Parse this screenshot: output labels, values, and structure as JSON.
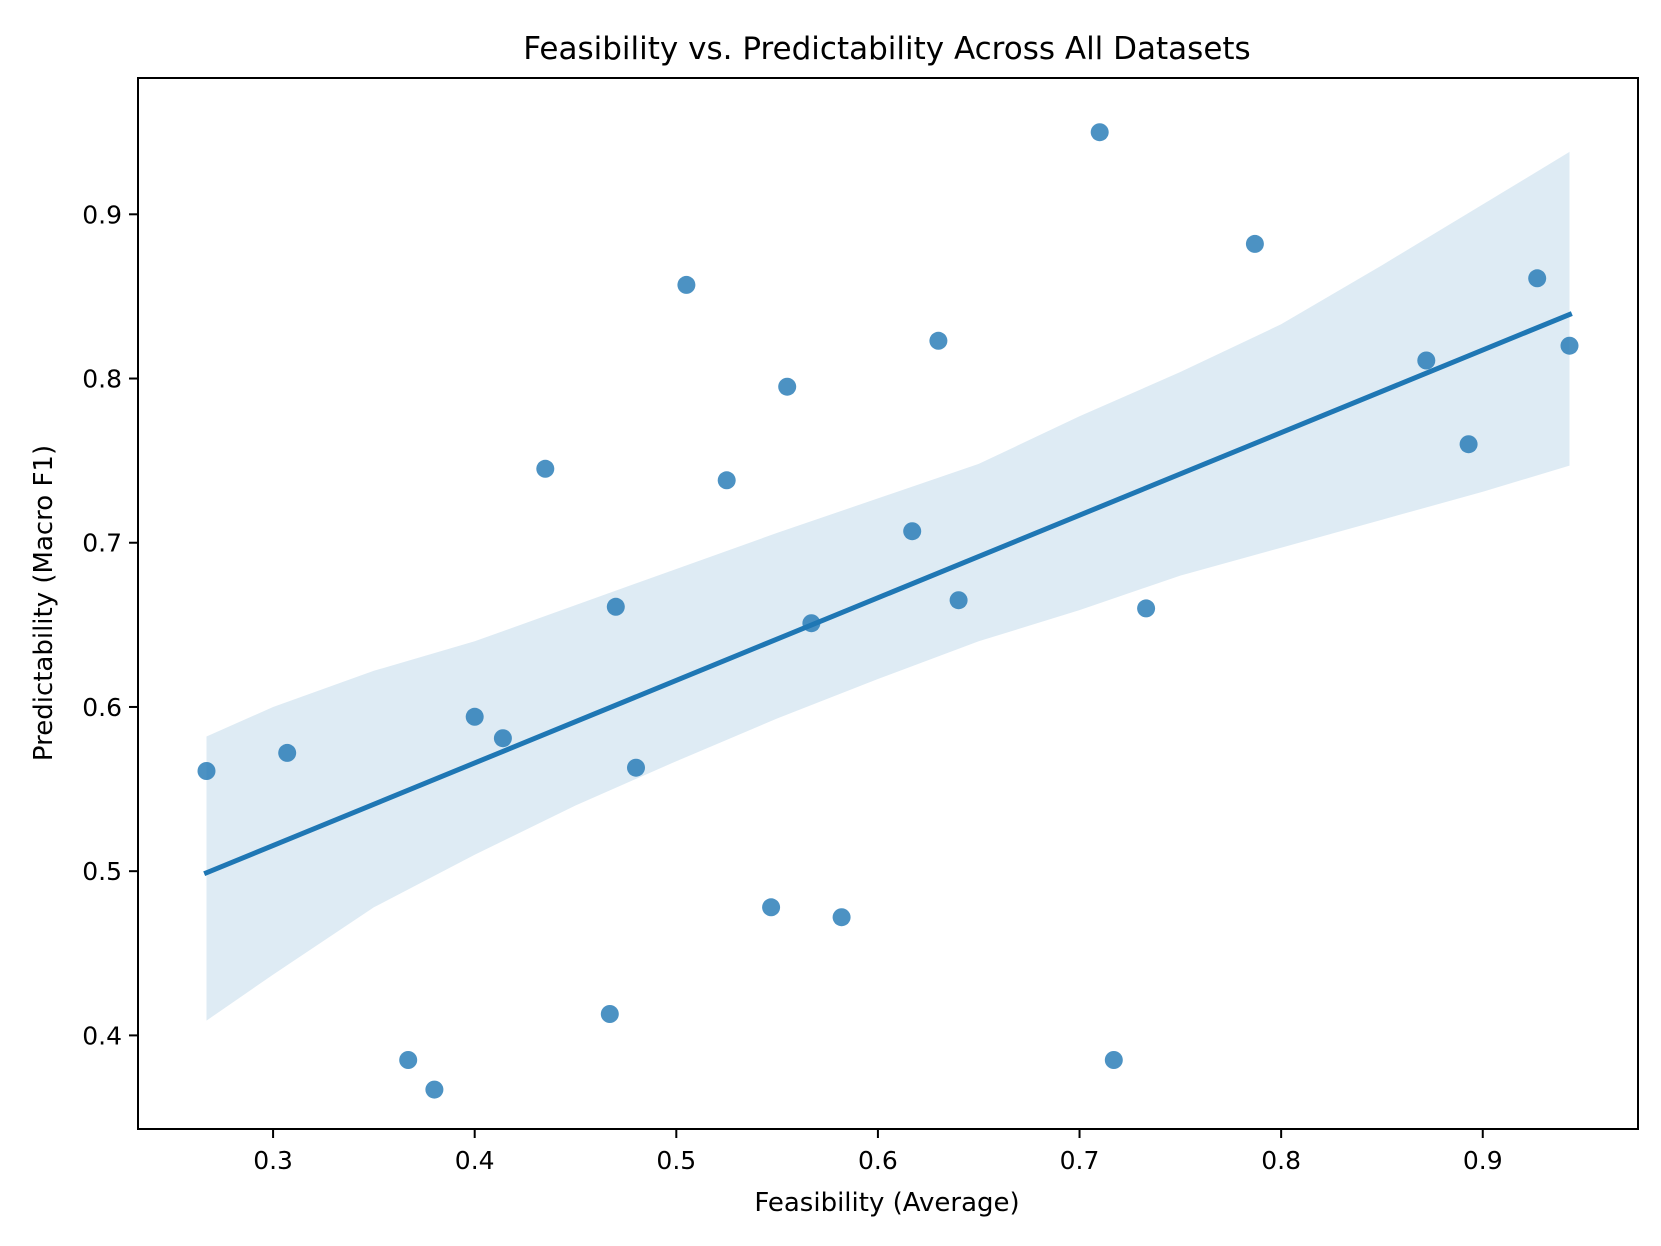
{
  "chart_data": {
    "type": "scatter",
    "title": "Feasibility vs. Predictability Across All Datasets",
    "xlabel": "Feasibility (Average)",
    "ylabel": "Predictability (Macro F1)",
    "xlim": [
      0.233,
      0.977
    ],
    "ylim": [
      0.343,
      0.983
    ],
    "xticks": [
      0.3,
      0.4,
      0.5,
      0.6,
      0.7,
      0.8,
      0.9
    ],
    "xtick_labels": [
      "0.3",
      "0.4",
      "0.5",
      "0.6",
      "0.7",
      "0.8",
      "0.9"
    ],
    "yticks": [
      0.4,
      0.5,
      0.6,
      0.7,
      0.8,
      0.9
    ],
    "ytick_labels": [
      "0.4",
      "0.5",
      "0.6",
      "0.7",
      "0.8",
      "0.9"
    ],
    "grid": false,
    "series": [
      {
        "name": "datasets",
        "color": "#1f77b4",
        "x": [
          0.267,
          0.307,
          0.367,
          0.38,
          0.4,
          0.414,
          0.435,
          0.467,
          0.47,
          0.48,
          0.505,
          0.525,
          0.547,
          0.555,
          0.567,
          0.582,
          0.617,
          0.63,
          0.64,
          0.71,
          0.717,
          0.733,
          0.787,
          0.872,
          0.893,
          0.927,
          0.943
        ],
        "y": [
          0.561,
          0.572,
          0.385,
          0.367,
          0.594,
          0.581,
          0.745,
          0.413,
          0.661,
          0.563,
          0.857,
          0.738,
          0.478,
          0.795,
          0.651,
          0.472,
          0.707,
          0.823,
          0.665,
          0.95,
          0.385,
          0.66,
          0.882,
          0.811,
          0.76,
          0.861,
          0.82
        ]
      }
    ],
    "regression": {
      "color": "#1f77b4",
      "x_range": [
        0.267,
        0.943
      ],
      "line_y": [
        0.499,
        0.839
      ],
      "ci": {
        "color": "#1f77b4",
        "x": [
          0.267,
          0.3,
          0.35,
          0.4,
          0.45,
          0.5,
          0.55,
          0.6,
          0.65,
          0.7,
          0.75,
          0.8,
          0.85,
          0.9,
          0.943
        ],
        "lower": [
          0.409,
          0.437,
          0.478,
          0.51,
          0.54,
          0.567,
          0.593,
          0.617,
          0.64,
          0.659,
          0.68,
          0.697,
          0.714,
          0.731,
          0.747
        ],
        "upper": [
          0.582,
          0.6,
          0.622,
          0.64,
          0.662,
          0.684,
          0.706,
          0.727,
          0.748,
          0.777,
          0.804,
          0.833,
          0.869,
          0.906,
          0.938
        ]
      }
    }
  }
}
